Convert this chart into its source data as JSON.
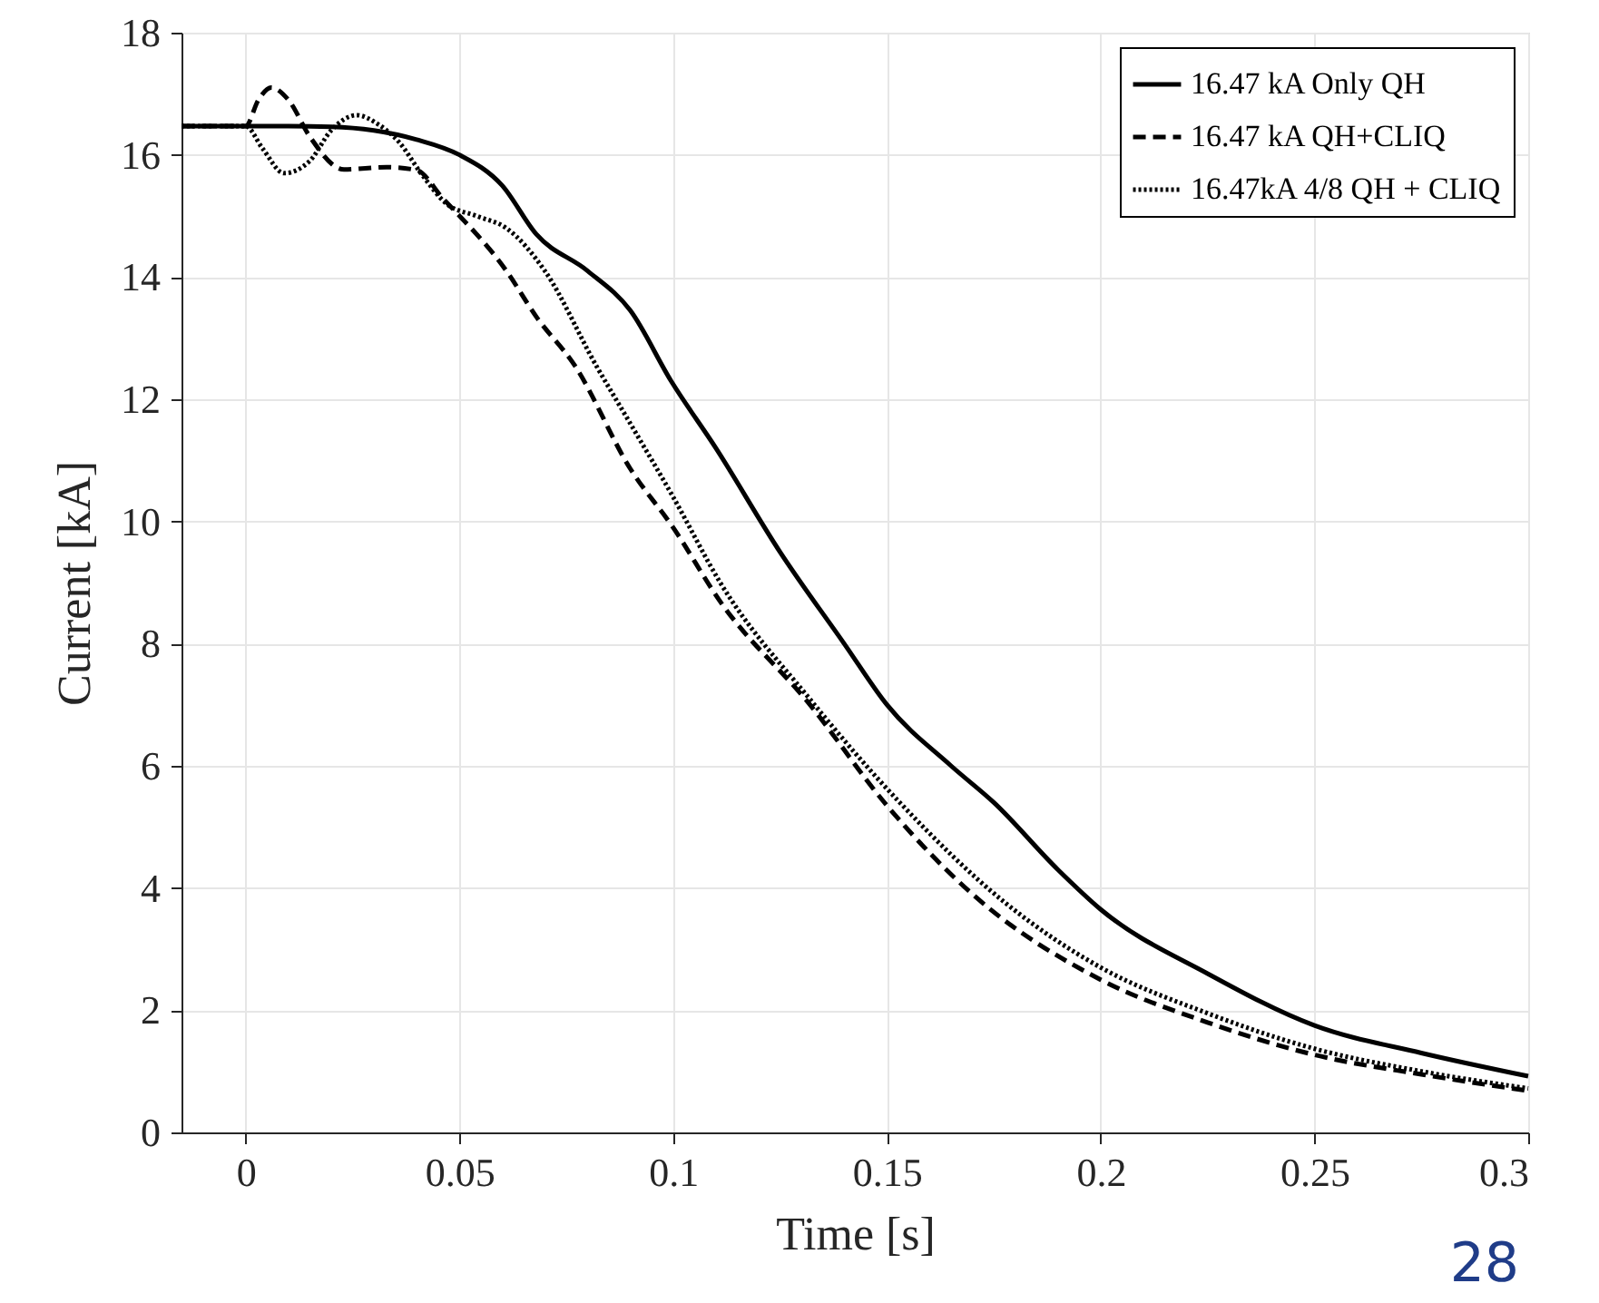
{
  "chart_data": {
    "type": "line",
    "xlabel": "Time [s]",
    "ylabel": "Current [kA]",
    "xlim": [
      -0.015,
      0.3
    ],
    "xticks": [
      0,
      0.05,
      0.1,
      0.15,
      0.2,
      0.25,
      0.3
    ],
    "ylim": [
      0,
      18
    ],
    "yticks": [
      0,
      2,
      4,
      6,
      8,
      10,
      12,
      14,
      16,
      18
    ],
    "grid": true,
    "legend": "top right",
    "marker": "none",
    "annotations": [
      "28"
    ],
    "series": [
      {
        "name": "16.47 kA Only QH",
        "color": "#000000",
        "line_style": "solid",
        "x": [
          -0.015,
          0,
          0.01,
          0.02,
          0.03,
          0.04,
          0.05,
          0.06,
          0.068,
          0.08,
          0.09,
          0.0995,
          0.11,
          0.125,
          0.14,
          0.15,
          0.165,
          0.175,
          0.19,
          0.2,
          0.225,
          0.25,
          0.275,
          0.3
        ],
        "values": [
          16.47,
          16.47,
          16.47,
          16.46,
          16.4,
          16.25,
          16.0,
          15.5,
          14.7,
          14.1,
          13.45,
          12.3,
          11.2,
          9.5,
          8.0,
          7.0,
          6.0,
          5.4,
          4.3,
          3.65,
          2.6,
          1.75,
          1.3,
          0.92
        ]
      },
      {
        "name": "16.47 kA QH+CLIQ",
        "color": "#000000",
        "line_style": "dashed",
        "x": [
          -0.015,
          0,
          0.003,
          0.006,
          0.01,
          0.015,
          0.023,
          0.033,
          0.04,
          0.046,
          0.061,
          0.068,
          0.077,
          0.09,
          0.1,
          0.111,
          0.132,
          0.15,
          0.17,
          0.2,
          0.225,
          0.25,
          0.275,
          0.3
        ],
        "values": [
          16.47,
          16.47,
          16.9,
          17.1,
          16.9,
          16.3,
          15.76,
          15.8,
          15.75,
          15.3,
          14.1,
          13.35,
          12.55,
          10.86,
          9.9,
          8.69,
          7.0,
          5.35,
          3.9,
          2.5,
          1.8,
          1.27,
          0.95,
          0.68
        ]
      },
      {
        "name": "16.47kA 4/8 QH + CLIQ",
        "color": "#000000",
        "line_style": "dotted",
        "x": [
          -0.015,
          0,
          0.004,
          0.009,
          0.015,
          0.02,
          0.026,
          0.031,
          0.036,
          0.041,
          0.047,
          0.054,
          0.061,
          0.07,
          0.082,
          0.09,
          0.1,
          0.111,
          0.132,
          0.153,
          0.178,
          0.2,
          0.225,
          0.25,
          0.275,
          0.3
        ],
        "values": [
          16.47,
          16.47,
          16.1,
          15.7,
          15.9,
          16.4,
          16.65,
          16.5,
          16.2,
          15.7,
          15.2,
          15.0,
          14.8,
          14.1,
          12.55,
          11.6,
          10.4,
          9.0,
          7.09,
          5.4,
          3.74,
          2.7,
          1.95,
          1.37,
          1.0,
          0.72
        ]
      }
    ]
  }
}
